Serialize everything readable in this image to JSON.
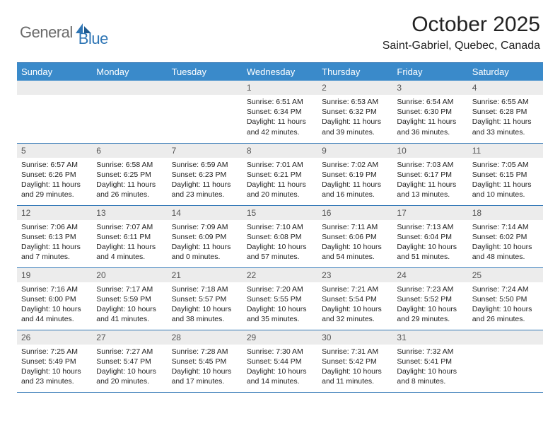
{
  "logo": {
    "general": "General",
    "blue": "Blue"
  },
  "title": "October 2025",
  "location": "Saint-Gabriel, Quebec, Canada",
  "colors": {
    "header_bg": "#3a8aca",
    "border": "#2f76b5",
    "daynum_bg": "#ececec",
    "logo_gray": "#6a6a6a",
    "logo_blue": "#2f76b5"
  },
  "day_names": [
    "Sunday",
    "Monday",
    "Tuesday",
    "Wednesday",
    "Thursday",
    "Friday",
    "Saturday"
  ],
  "weeks": [
    [
      {
        "n": "",
        "sr": "",
        "ss": "",
        "dl": ""
      },
      {
        "n": "",
        "sr": "",
        "ss": "",
        "dl": ""
      },
      {
        "n": "",
        "sr": "",
        "ss": "",
        "dl": ""
      },
      {
        "n": "1",
        "sr": "Sunrise: 6:51 AM",
        "ss": "Sunset: 6:34 PM",
        "dl": "Daylight: 11 hours and 42 minutes."
      },
      {
        "n": "2",
        "sr": "Sunrise: 6:53 AM",
        "ss": "Sunset: 6:32 PM",
        "dl": "Daylight: 11 hours and 39 minutes."
      },
      {
        "n": "3",
        "sr": "Sunrise: 6:54 AM",
        "ss": "Sunset: 6:30 PM",
        "dl": "Daylight: 11 hours and 36 minutes."
      },
      {
        "n": "4",
        "sr": "Sunrise: 6:55 AM",
        "ss": "Sunset: 6:28 PM",
        "dl": "Daylight: 11 hours and 33 minutes."
      }
    ],
    [
      {
        "n": "5",
        "sr": "Sunrise: 6:57 AM",
        "ss": "Sunset: 6:26 PM",
        "dl": "Daylight: 11 hours and 29 minutes."
      },
      {
        "n": "6",
        "sr": "Sunrise: 6:58 AM",
        "ss": "Sunset: 6:25 PM",
        "dl": "Daylight: 11 hours and 26 minutes."
      },
      {
        "n": "7",
        "sr": "Sunrise: 6:59 AM",
        "ss": "Sunset: 6:23 PM",
        "dl": "Daylight: 11 hours and 23 minutes."
      },
      {
        "n": "8",
        "sr": "Sunrise: 7:01 AM",
        "ss": "Sunset: 6:21 PM",
        "dl": "Daylight: 11 hours and 20 minutes."
      },
      {
        "n": "9",
        "sr": "Sunrise: 7:02 AM",
        "ss": "Sunset: 6:19 PM",
        "dl": "Daylight: 11 hours and 16 minutes."
      },
      {
        "n": "10",
        "sr": "Sunrise: 7:03 AM",
        "ss": "Sunset: 6:17 PM",
        "dl": "Daylight: 11 hours and 13 minutes."
      },
      {
        "n": "11",
        "sr": "Sunrise: 7:05 AM",
        "ss": "Sunset: 6:15 PM",
        "dl": "Daylight: 11 hours and 10 minutes."
      }
    ],
    [
      {
        "n": "12",
        "sr": "Sunrise: 7:06 AM",
        "ss": "Sunset: 6:13 PM",
        "dl": "Daylight: 11 hours and 7 minutes."
      },
      {
        "n": "13",
        "sr": "Sunrise: 7:07 AM",
        "ss": "Sunset: 6:11 PM",
        "dl": "Daylight: 11 hours and 4 minutes."
      },
      {
        "n": "14",
        "sr": "Sunrise: 7:09 AM",
        "ss": "Sunset: 6:09 PM",
        "dl": "Daylight: 11 hours and 0 minutes."
      },
      {
        "n": "15",
        "sr": "Sunrise: 7:10 AM",
        "ss": "Sunset: 6:08 PM",
        "dl": "Daylight: 10 hours and 57 minutes."
      },
      {
        "n": "16",
        "sr": "Sunrise: 7:11 AM",
        "ss": "Sunset: 6:06 PM",
        "dl": "Daylight: 10 hours and 54 minutes."
      },
      {
        "n": "17",
        "sr": "Sunrise: 7:13 AM",
        "ss": "Sunset: 6:04 PM",
        "dl": "Daylight: 10 hours and 51 minutes."
      },
      {
        "n": "18",
        "sr": "Sunrise: 7:14 AM",
        "ss": "Sunset: 6:02 PM",
        "dl": "Daylight: 10 hours and 48 minutes."
      }
    ],
    [
      {
        "n": "19",
        "sr": "Sunrise: 7:16 AM",
        "ss": "Sunset: 6:00 PM",
        "dl": "Daylight: 10 hours and 44 minutes."
      },
      {
        "n": "20",
        "sr": "Sunrise: 7:17 AM",
        "ss": "Sunset: 5:59 PM",
        "dl": "Daylight: 10 hours and 41 minutes."
      },
      {
        "n": "21",
        "sr": "Sunrise: 7:18 AM",
        "ss": "Sunset: 5:57 PM",
        "dl": "Daylight: 10 hours and 38 minutes."
      },
      {
        "n": "22",
        "sr": "Sunrise: 7:20 AM",
        "ss": "Sunset: 5:55 PM",
        "dl": "Daylight: 10 hours and 35 minutes."
      },
      {
        "n": "23",
        "sr": "Sunrise: 7:21 AM",
        "ss": "Sunset: 5:54 PM",
        "dl": "Daylight: 10 hours and 32 minutes."
      },
      {
        "n": "24",
        "sr": "Sunrise: 7:23 AM",
        "ss": "Sunset: 5:52 PM",
        "dl": "Daylight: 10 hours and 29 minutes."
      },
      {
        "n": "25",
        "sr": "Sunrise: 7:24 AM",
        "ss": "Sunset: 5:50 PM",
        "dl": "Daylight: 10 hours and 26 minutes."
      }
    ],
    [
      {
        "n": "26",
        "sr": "Sunrise: 7:25 AM",
        "ss": "Sunset: 5:49 PM",
        "dl": "Daylight: 10 hours and 23 minutes."
      },
      {
        "n": "27",
        "sr": "Sunrise: 7:27 AM",
        "ss": "Sunset: 5:47 PM",
        "dl": "Daylight: 10 hours and 20 minutes."
      },
      {
        "n": "28",
        "sr": "Sunrise: 7:28 AM",
        "ss": "Sunset: 5:45 PM",
        "dl": "Daylight: 10 hours and 17 minutes."
      },
      {
        "n": "29",
        "sr": "Sunrise: 7:30 AM",
        "ss": "Sunset: 5:44 PM",
        "dl": "Daylight: 10 hours and 14 minutes."
      },
      {
        "n": "30",
        "sr": "Sunrise: 7:31 AM",
        "ss": "Sunset: 5:42 PM",
        "dl": "Daylight: 10 hours and 11 minutes."
      },
      {
        "n": "31",
        "sr": "Sunrise: 7:32 AM",
        "ss": "Sunset: 5:41 PM",
        "dl": "Daylight: 10 hours and 8 minutes."
      },
      {
        "n": "",
        "sr": "",
        "ss": "",
        "dl": ""
      }
    ]
  ]
}
